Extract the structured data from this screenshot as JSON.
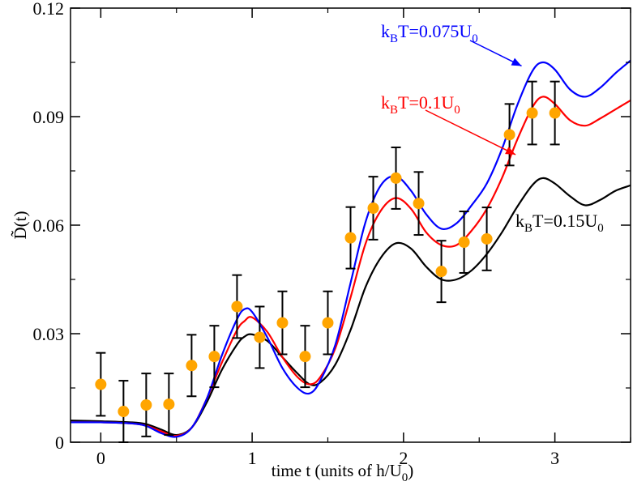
{
  "chart_data": {
    "type": "line",
    "title": "",
    "xlabel": "time t (units of h/U",
    "xlabel_sub": "0",
    "xlabel_tail": ")",
    "ylabel": "D̃(t)",
    "xlim": [
      -0.2,
      3.5
    ],
    "ylim": [
      0,
      0.12
    ],
    "xticks": [
      0,
      1,
      2,
      3
    ],
    "xtick_labels": [
      "0",
      "1",
      "2",
      "3"
    ],
    "yticks": [
      0,
      0.03,
      0.06,
      0.09,
      0.12
    ],
    "ytick_labels": [
      "0",
      "0.03",
      "0.06",
      "0.09",
      "0.12"
    ],
    "series": [
      {
        "name": "kBT=0.075U0",
        "color": "#0000ff",
        "x": [
          -0.2,
          0,
          0.2,
          0.3,
          0.4,
          0.5,
          0.6,
          0.7,
          0.8,
          0.9,
          0.95,
          1.0,
          1.1,
          1.2,
          1.3,
          1.38,
          1.45,
          1.55,
          1.65,
          1.75,
          1.85,
          1.95,
          2.05,
          2.15,
          2.25,
          2.35,
          2.45,
          2.55,
          2.65,
          2.75,
          2.85,
          2.92,
          3.0,
          3.1,
          3.2,
          3.3,
          3.4,
          3.5
        ],
        "y": [
          0.0055,
          0.0055,
          0.0052,
          0.0045,
          0.0025,
          0.0015,
          0.004,
          0.012,
          0.024,
          0.034,
          0.0368,
          0.036,
          0.029,
          0.0205,
          0.015,
          0.0135,
          0.017,
          0.027,
          0.044,
          0.061,
          0.071,
          0.0735,
          0.0695,
          0.063,
          0.059,
          0.0605,
          0.0655,
          0.0715,
          0.081,
          0.093,
          0.1025,
          0.105,
          0.103,
          0.0975,
          0.0955,
          0.098,
          0.102,
          0.1055
        ]
      },
      {
        "name": "kBT=0.1U0",
        "color": "#ff0000",
        "x": [
          -0.2,
          0,
          0.2,
          0.3,
          0.4,
          0.5,
          0.6,
          0.7,
          0.8,
          0.9,
          0.95,
          1.0,
          1.1,
          1.2,
          1.3,
          1.38,
          1.45,
          1.55,
          1.65,
          1.75,
          1.85,
          1.95,
          2.05,
          2.15,
          2.25,
          2.35,
          2.45,
          2.55,
          2.65,
          2.75,
          2.85,
          2.92,
          3.0,
          3.1,
          3.2,
          3.3,
          3.4,
          3.5
        ],
        "y": [
          0.0055,
          0.0055,
          0.0052,
          0.0046,
          0.003,
          0.0018,
          0.004,
          0.012,
          0.022,
          0.031,
          0.0335,
          0.0345,
          0.0305,
          0.0235,
          0.018,
          0.016,
          0.018,
          0.026,
          0.04,
          0.055,
          0.064,
          0.0675,
          0.0645,
          0.058,
          0.0545,
          0.0545,
          0.0585,
          0.0645,
          0.073,
          0.0835,
          0.0925,
          0.0955,
          0.0935,
          0.089,
          0.0875,
          0.0895,
          0.092,
          0.0945
        ]
      },
      {
        "name": "kBT=0.15U0",
        "color": "#000000",
        "x": [
          -0.2,
          0,
          0.2,
          0.3,
          0.4,
          0.5,
          0.6,
          0.7,
          0.8,
          0.9,
          0.95,
          1.0,
          1.1,
          1.2,
          1.3,
          1.38,
          1.45,
          1.55,
          1.65,
          1.75,
          1.85,
          1.95,
          2.05,
          2.15,
          2.25,
          2.35,
          2.45,
          2.55,
          2.65,
          2.75,
          2.85,
          2.92,
          3.0,
          3.1,
          3.2,
          3.3,
          3.4,
          3.5
        ],
        "y": [
          0.006,
          0.0058,
          0.0055,
          0.005,
          0.0035,
          0.002,
          0.004,
          0.011,
          0.02,
          0.027,
          0.0292,
          0.0298,
          0.028,
          0.0235,
          0.019,
          0.016,
          0.0165,
          0.0215,
          0.031,
          0.043,
          0.051,
          0.055,
          0.0535,
          0.0485,
          0.045,
          0.045,
          0.0475,
          0.052,
          0.058,
          0.065,
          0.071,
          0.073,
          0.0715,
          0.068,
          0.0655,
          0.067,
          0.0695,
          0.071
        ]
      }
    ],
    "data_points": {
      "name": "measurements",
      "color": "#ffa500",
      "error_color": "#000000",
      "x": [
        0,
        0.15,
        0.3,
        0.45,
        0.6,
        0.75,
        0.9,
        1.05,
        1.2,
        1.35,
        1.5,
        1.65,
        1.8,
        1.95,
        2.1,
        2.25,
        2.4,
        2.55,
        2.7,
        2.85,
        3.0
      ],
      "y": [
        0.016,
        0.0085,
        0.0103,
        0.0105,
        0.0212,
        0.0237,
        0.0375,
        0.029,
        0.033,
        0.0237,
        0.033,
        0.0565,
        0.0647,
        0.073,
        0.066,
        0.0472,
        0.0553,
        0.0562,
        0.085,
        0.091,
        0.091
      ],
      "yerr": [
        0.0087,
        0.0085,
        0.0087,
        0.0085,
        0.0085,
        0.0085,
        0.0087,
        0.0085,
        0.0087,
        0.0085,
        0.0087,
        0.0085,
        0.0087,
        0.0085,
        0.0087,
        0.0085,
        0.0085,
        0.0087,
        0.0085,
        0.0087,
        0.0087
      ]
    },
    "annotations": [
      {
        "main": "k",
        "sub1": "B",
        "mid": "T=0.075U",
        "sub2": "0",
        "color": "#0000ff",
        "arrow": true,
        "arrow_to": [
          2.78,
          0.104
        ]
      },
      {
        "main": "k",
        "sub1": "B",
        "mid": "T=0.1U",
        "sub2": "0",
        "color": "#ff0000",
        "arrow": true,
        "arrow_to": [
          2.74,
          0.0795
        ]
      },
      {
        "main": "k",
        "sub1": "B",
        "mid": "T=0.15U",
        "sub2": "0",
        "color": "#000000",
        "arrow": false
      }
    ]
  }
}
